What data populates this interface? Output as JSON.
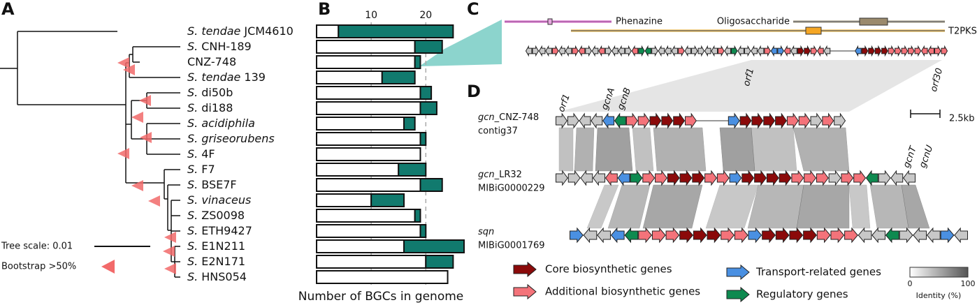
{
  "panels": {
    "a": "A",
    "b": "B",
    "c": "C",
    "d": "D"
  },
  "tree": {
    "scale_label": "Tree scale: 0.01",
    "bootstrap_label": "Bootstrap >50%"
  },
  "chart_data": {
    "type": "stacked-bar",
    "orientation": "horizontal",
    "categories": [
      {
        "italic": "S. tendae",
        "name": "JCM4610"
      },
      {
        "italic": "S.",
        "name": "CNH-189"
      },
      {
        "name": "CNZ-748",
        "highlight": true
      },
      {
        "italic": "S. tendae",
        "name": "139"
      },
      {
        "italic": "S.",
        "name": "di50b"
      },
      {
        "italic": "S.",
        "name": "di188"
      },
      {
        "italic": "S. acidiphila"
      },
      {
        "italic": "S. griseorubens"
      },
      {
        "italic": "S.",
        "name": "4F"
      },
      {
        "italic": "S.",
        "name": "F7"
      },
      {
        "italic": "S.",
        "name": "BSE7F"
      },
      {
        "italic": "S. vinaceus"
      },
      {
        "italic": "S.",
        "name": "ZS0098"
      },
      {
        "italic": "S.",
        "name": "ETH9427"
      },
      {
        "italic": "S.",
        "name": "E1N211"
      },
      {
        "italic": "S.",
        "name": "E2N171"
      },
      {
        "italic": "S.",
        "name": "HNS054"
      }
    ],
    "highlight_color": "#e0201b",
    "series": [
      {
        "color": "#ffffff",
        "values": [
          4,
          18,
          18,
          12,
          19,
          19,
          16,
          19,
          19,
          15,
          19,
          10,
          18,
          19,
          16,
          20,
          24
        ]
      },
      {
        "color": "#117a6e",
        "values": [
          21,
          5,
          1,
          6,
          2,
          3,
          2,
          1,
          0,
          5,
          4,
          6,
          1,
          1,
          11,
          5,
          0
        ]
      }
    ],
    "xlim": [
      0,
      27
    ],
    "xticks": [
      10,
      20
    ],
    "grid": true,
    "xlabel": "Number of BGCs in genome"
  },
  "cluster_map": {
    "tracks": [
      "Phenazine",
      "Oligosaccharide",
      "T2PKS"
    ],
    "genes": [
      "orf1",
      "orf30"
    ]
  },
  "comparison": {
    "clusters": [
      {
        "italic": "gcn",
        "name": "_CNZ-748",
        "sub": "contig37"
      },
      {
        "italic": "gcn",
        "name": "_LR32",
        "sub": "MIBiG0000229"
      },
      {
        "italic": "sqn",
        "sub": "MIBiG0001769"
      }
    ],
    "genes_top": [
      "orf1",
      "gcnA",
      "gcnB"
    ],
    "genes_mid": [
      "gcnT",
      "gcnU"
    ],
    "scale_bar": "2.5kb",
    "legend": [
      "Core biosynthetic genes",
      "Additional biosynthetic genes",
      "Transport-related genes",
      "Regulatory genes"
    ],
    "identity": {
      "label": "Identity (%)",
      "min": "0",
      "max": "100"
    }
  }
}
